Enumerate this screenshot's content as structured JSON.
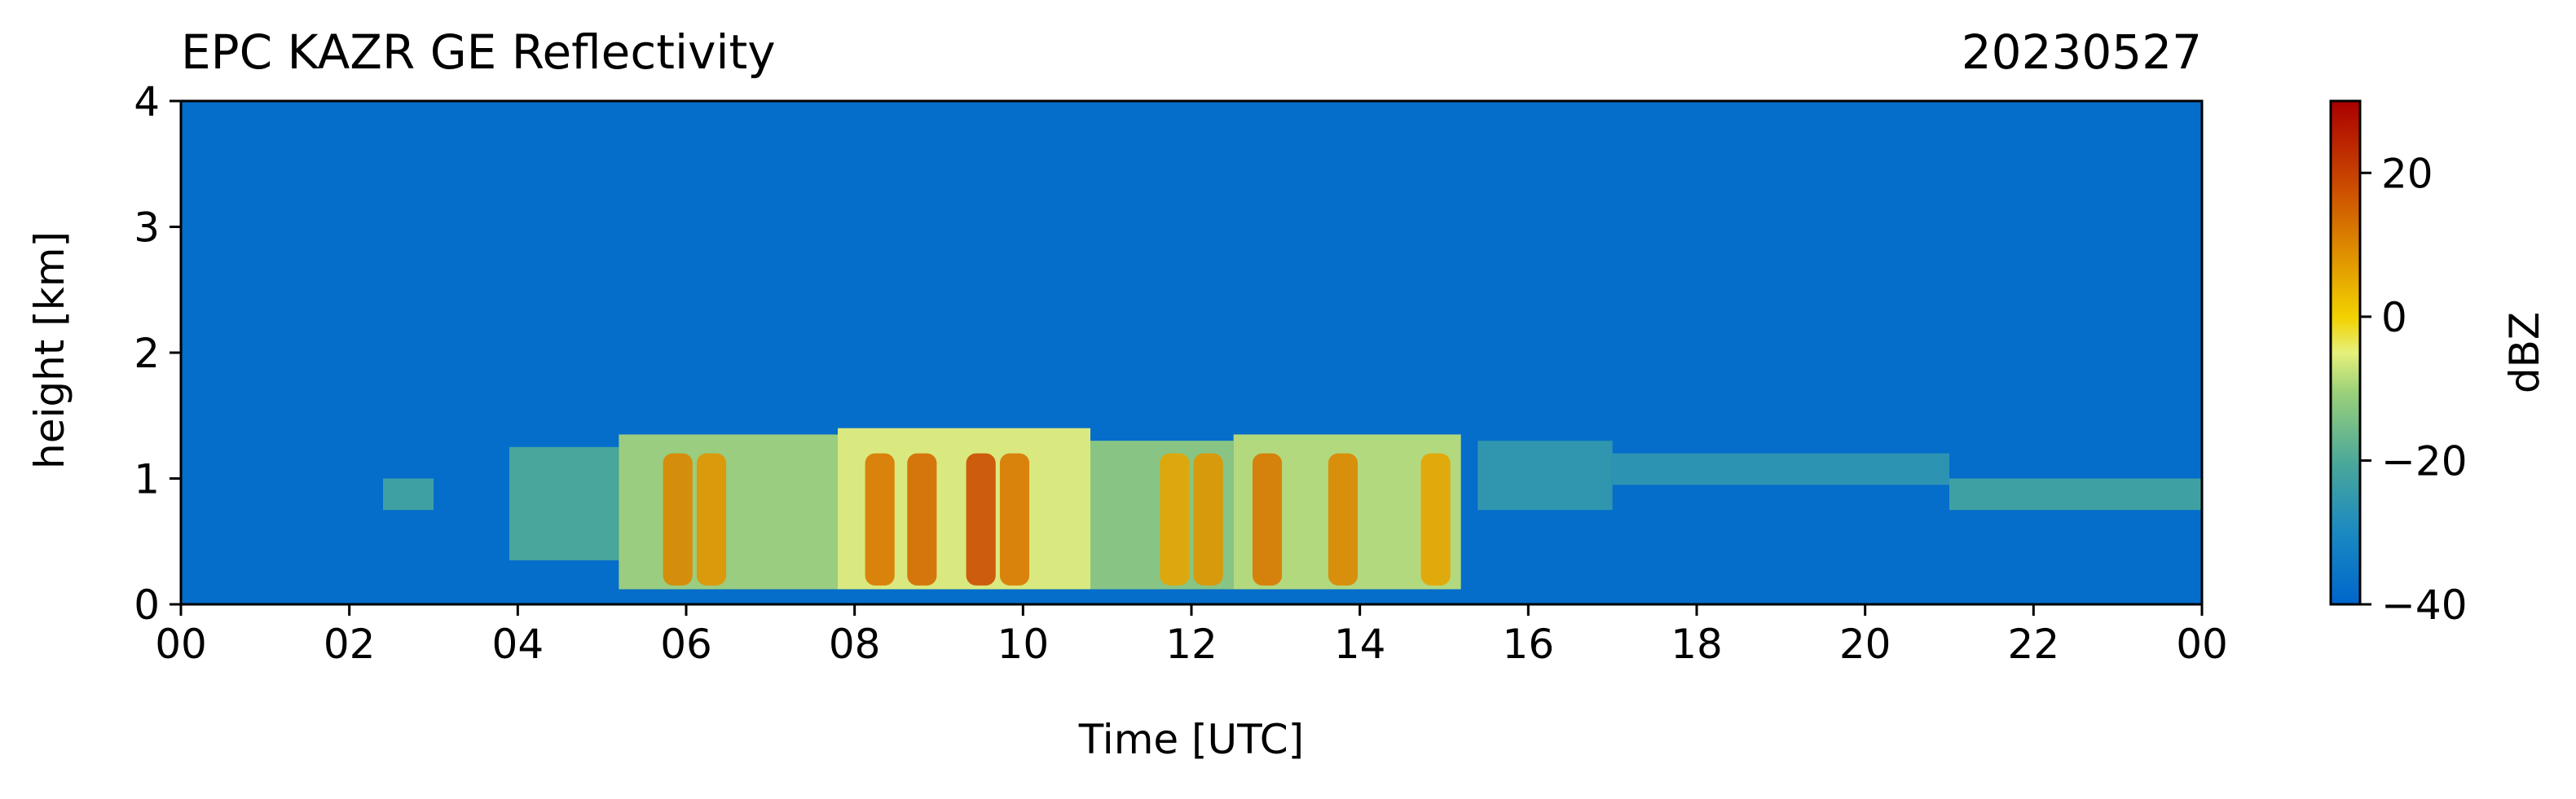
{
  "chart_data": {
    "type": "heatmap",
    "title": "EPC KAZR GE Reflectivity",
    "date_label": "20230527",
    "xlabel": "Time [UTC]",
    "ylabel": "height [km]",
    "x_ticks": [
      "00",
      "02",
      "04",
      "06",
      "08",
      "10",
      "12",
      "14",
      "16",
      "18",
      "20",
      "22",
      "00"
    ],
    "x_range_hours": [
      0,
      24
    ],
    "y_ticks": [
      "0",
      "1",
      "2",
      "3",
      "4"
    ],
    "y_range_km": [
      0,
      4
    ],
    "colorbar": {
      "label": "dBZ",
      "range": [
        -40,
        30
      ],
      "ticks": [
        "20",
        "0",
        "−20",
        "−40"
      ],
      "tick_values": [
        20,
        0,
        -20,
        -40
      ]
    },
    "background_dbz": -38,
    "cloud_layer": [
      {
        "t": [
          2.4,
          3.0
        ],
        "top": 1.0,
        "base": 0.75,
        "dbz": -22
      },
      {
        "t": [
          3.9,
          5.2
        ],
        "top": 1.25,
        "base": 0.35,
        "dbz": -20
      },
      {
        "t": [
          5.2,
          7.8
        ],
        "top": 1.35,
        "base": 0.12,
        "dbz": -10
      },
      {
        "t": [
          7.8,
          10.8
        ],
        "top": 1.4,
        "base": 0.12,
        "dbz": -5
      },
      {
        "t": [
          10.8,
          12.5
        ],
        "top": 1.3,
        "base": 0.12,
        "dbz": -12
      },
      {
        "t": [
          12.5,
          15.2
        ],
        "top": 1.35,
        "base": 0.12,
        "dbz": -8
      },
      {
        "t": [
          15.4,
          17.0
        ],
        "top": 1.3,
        "base": 0.75,
        "dbz": -25
      },
      {
        "t": [
          17.0,
          21.0
        ],
        "top": 1.2,
        "base": 0.95,
        "dbz": -26
      },
      {
        "t": [
          21.0,
          24.0
        ],
        "top": 1.0,
        "base": 0.75,
        "dbz": -22
      }
    ],
    "convective_cores": [
      {
        "t": 5.9,
        "dbz": 10
      },
      {
        "t": 6.3,
        "dbz": 8
      },
      {
        "t": 8.3,
        "dbz": 12
      },
      {
        "t": 8.8,
        "dbz": 14
      },
      {
        "t": 9.5,
        "dbz": 18
      },
      {
        "t": 9.9,
        "dbz": 12
      },
      {
        "t": 11.8,
        "dbz": 6
      },
      {
        "t": 12.2,
        "dbz": 8
      },
      {
        "t": 12.9,
        "dbz": 12
      },
      {
        "t": 13.8,
        "dbz": 10
      },
      {
        "t": 14.9,
        "dbz": 6
      }
    ]
  }
}
